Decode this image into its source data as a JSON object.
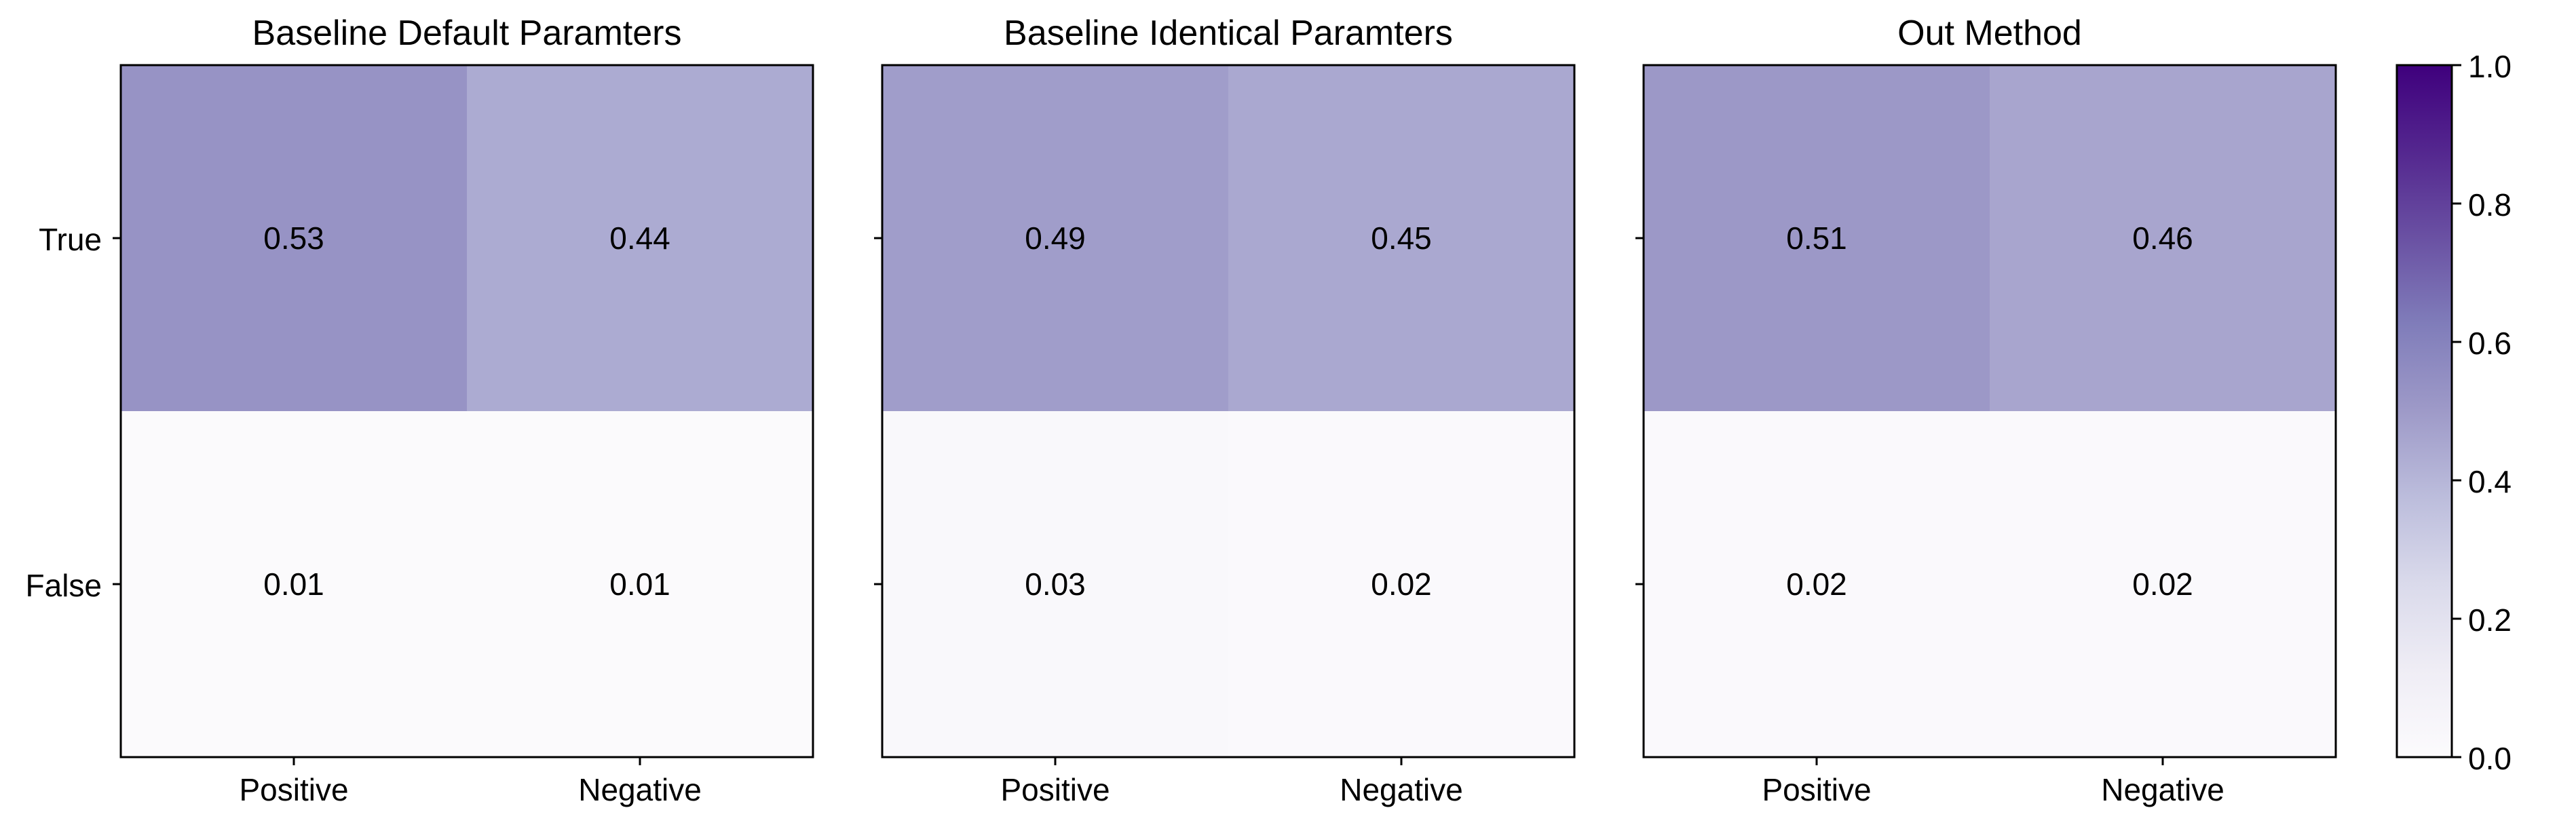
{
  "chart_data": {
    "type": "heatmap",
    "row_labels": [
      "True",
      "False"
    ],
    "col_labels": [
      "Positive",
      "Negative"
    ],
    "value_range": [
      0.0,
      1.0
    ],
    "colormap": "Purples",
    "panels": [
      {
        "title": "Baseline Default Paramters",
        "values": [
          [
            0.53,
            0.44
          ],
          [
            0.01,
            0.01
          ]
        ],
        "labels": [
          [
            "0.53",
            "0.44"
          ],
          [
            "0.01",
            "0.01"
          ]
        ]
      },
      {
        "title": "Baseline Identical Paramters",
        "values": [
          [
            0.49,
            0.45
          ],
          [
            0.03,
            0.02
          ]
        ],
        "labels": [
          [
            "0.49",
            "0.45"
          ],
          [
            "0.03",
            "0.02"
          ]
        ]
      },
      {
        "title": "Out Method",
        "values": [
          [
            0.51,
            0.46
          ],
          [
            0.02,
            0.02
          ]
        ],
        "labels": [
          [
            "0.51",
            "0.46"
          ],
          [
            "0.02",
            "0.02"
          ]
        ]
      }
    ],
    "colorbar": {
      "ticks": [
        0.0,
        0.2,
        0.4,
        0.6,
        0.8,
        1.0
      ],
      "tick_labels": [
        "0.0",
        "0.2",
        "0.4",
        "0.6",
        "0.8",
        "1.0"
      ]
    }
  }
}
